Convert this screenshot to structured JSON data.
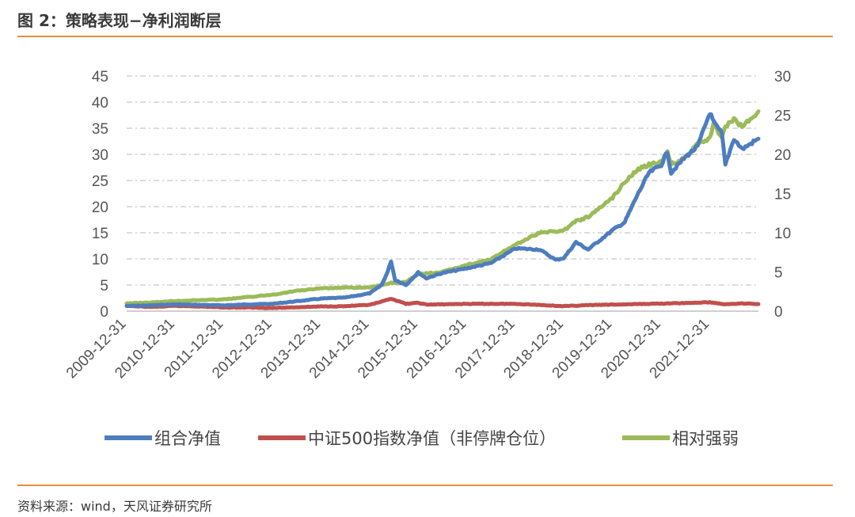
{
  "header": {
    "title": "图 2：策略表现−净利润断层"
  },
  "footer": {
    "source": "资料来源：wind，天风证券研究所"
  },
  "theme": {
    "rule_color": "#e98f3c"
  },
  "chart_data": {
    "type": "line",
    "title": "",
    "x_tick_labels": [
      "2009-12-31",
      "2010-12-31",
      "2011-12-31",
      "2012-12-31",
      "2013-12-31",
      "2014-12-31",
      "2015-12-31",
      "2016-12-31",
      "2017-12-31",
      "2018-12-31",
      "2019-12-31",
      "2020-12-31",
      "2021-12-31"
    ],
    "x_range": [
      "2009-12-31",
      "2022-12-31"
    ],
    "y_left": {
      "min": 0,
      "max": 45,
      "ticks": [
        "0",
        "5",
        "10",
        "15",
        "20",
        "25",
        "30",
        "35",
        "40",
        "45"
      ]
    },
    "y_right": {
      "min": 0,
      "max": 30,
      "ticks": [
        "0",
        "5",
        "10",
        "15",
        "20",
        "25",
        "30"
      ]
    },
    "grid": "horizontal dashed",
    "legend_position": "bottom",
    "series": [
      {
        "name": "组合净值",
        "axis": "left",
        "color": "#4e7dbf",
        "points": [
          [
            "2009-12-31",
            1.0
          ],
          [
            "2010-06-30",
            1.1
          ],
          [
            "2010-12-31",
            1.3
          ],
          [
            "2011-06-30",
            1.2
          ],
          [
            "2011-12-31",
            1.1
          ],
          [
            "2012-06-30",
            1.3
          ],
          [
            "2012-12-31",
            1.4
          ],
          [
            "2013-06-30",
            1.9
          ],
          [
            "2013-12-31",
            2.4
          ],
          [
            "2014-06-30",
            2.6
          ],
          [
            "2014-12-31",
            3.4
          ],
          [
            "2015-03-31",
            5.0
          ],
          [
            "2015-05-15",
            7.5
          ],
          [
            "2015-06-10",
            9.6
          ],
          [
            "2015-07-10",
            6.0
          ],
          [
            "2015-09-30",
            5.0
          ],
          [
            "2015-12-31",
            7.4
          ],
          [
            "2016-03-01",
            6.3
          ],
          [
            "2016-06-30",
            7.3
          ],
          [
            "2016-12-31",
            8.2
          ],
          [
            "2017-06-30",
            9.2
          ],
          [
            "2017-12-31",
            12.0
          ],
          [
            "2018-06-30",
            11.8
          ],
          [
            "2018-10-30",
            9.8
          ],
          [
            "2018-12-31",
            10.2
          ],
          [
            "2019-03-31",
            13.2
          ],
          [
            "2019-06-30",
            11.8
          ],
          [
            "2019-12-31",
            15.5
          ],
          [
            "2020-03-31",
            17.0
          ],
          [
            "2020-06-30",
            22.0
          ],
          [
            "2020-09-30",
            26.5
          ],
          [
            "2020-12-31",
            28.0
          ],
          [
            "2021-02-15",
            30.5
          ],
          [
            "2021-03-15",
            26.5
          ],
          [
            "2021-06-30",
            29.5
          ],
          [
            "2021-09-30",
            31.5
          ],
          [
            "2021-12-31",
            38.0
          ],
          [
            "2022-01-31",
            36.0
          ],
          [
            "2022-03-31",
            34.0
          ],
          [
            "2022-04-26",
            28.0
          ],
          [
            "2022-06-30",
            33.0
          ],
          [
            "2022-08-31",
            31.0
          ],
          [
            "2022-12-31",
            33.0
          ]
        ]
      },
      {
        "name": "中证500指数净值（非停牌仓位）",
        "axis": "left",
        "color": "#c0504d",
        "points": [
          [
            "2009-12-31",
            1.0
          ],
          [
            "2010-06-30",
            0.8
          ],
          [
            "2010-12-31",
            1.0
          ],
          [
            "2011-06-30",
            0.9
          ],
          [
            "2011-12-31",
            0.7
          ],
          [
            "2012-06-30",
            0.7
          ],
          [
            "2012-12-31",
            0.6
          ],
          [
            "2013-06-30",
            0.75
          ],
          [
            "2013-12-31",
            0.9
          ],
          [
            "2014-06-30",
            0.95
          ],
          [
            "2014-12-31",
            1.2
          ],
          [
            "2015-03-31",
            1.8
          ],
          [
            "2015-06-10",
            2.4
          ],
          [
            "2015-09-30",
            1.4
          ],
          [
            "2015-12-31",
            1.6
          ],
          [
            "2016-03-01",
            1.25
          ],
          [
            "2016-12-31",
            1.4
          ],
          [
            "2017-12-31",
            1.4
          ],
          [
            "2018-06-30",
            1.2
          ],
          [
            "2018-12-31",
            0.95
          ],
          [
            "2019-06-30",
            1.15
          ],
          [
            "2019-12-31",
            1.25
          ],
          [
            "2020-06-30",
            1.35
          ],
          [
            "2020-12-31",
            1.45
          ],
          [
            "2021-06-30",
            1.55
          ],
          [
            "2021-12-31",
            1.7
          ],
          [
            "2022-04-26",
            1.3
          ],
          [
            "2022-08-31",
            1.5
          ],
          [
            "2022-12-31",
            1.35
          ]
        ]
      },
      {
        "name": "相对强弱",
        "axis": "right",
        "color": "#9bbb59",
        "points": [
          [
            "2009-12-31",
            1.0
          ],
          [
            "2010-06-30",
            1.1
          ],
          [
            "2010-12-31",
            1.3
          ],
          [
            "2011-06-30",
            1.4
          ],
          [
            "2011-12-31",
            1.5
          ],
          [
            "2012-06-30",
            1.8
          ],
          [
            "2012-12-31",
            2.1
          ],
          [
            "2013-06-30",
            2.6
          ],
          [
            "2013-12-31",
            2.9
          ],
          [
            "2014-06-30",
            3.0
          ],
          [
            "2014-12-31",
            3.0
          ],
          [
            "2015-06-10",
            3.6
          ],
          [
            "2015-09-30",
            3.7
          ],
          [
            "2015-12-31",
            4.7
          ],
          [
            "2016-06-30",
            5.0
          ],
          [
            "2016-12-31",
            5.9
          ],
          [
            "2017-06-30",
            6.6
          ],
          [
            "2017-12-31",
            8.5
          ],
          [
            "2018-06-30",
            10.0
          ],
          [
            "2018-12-31",
            10.3
          ],
          [
            "2019-03-31",
            11.5
          ],
          [
            "2019-06-30",
            12.0
          ],
          [
            "2019-12-31",
            14.5
          ],
          [
            "2020-03-31",
            16.5
          ],
          [
            "2020-06-30",
            18.0
          ],
          [
            "2020-09-30",
            18.7
          ],
          [
            "2020-12-31",
            19.0
          ],
          [
            "2021-02-15",
            20.5
          ],
          [
            "2021-03-15",
            18.8
          ],
          [
            "2021-06-30",
            19.5
          ],
          [
            "2021-09-30",
            21.5
          ],
          [
            "2021-12-31",
            22.0
          ],
          [
            "2022-01-31",
            24.0
          ],
          [
            "2022-03-31",
            22.0
          ],
          [
            "2022-04-26",
            23.5
          ],
          [
            "2022-06-30",
            24.5
          ],
          [
            "2022-08-31",
            23.5
          ],
          [
            "2022-12-31",
            25.5
          ]
        ]
      }
    ]
  }
}
